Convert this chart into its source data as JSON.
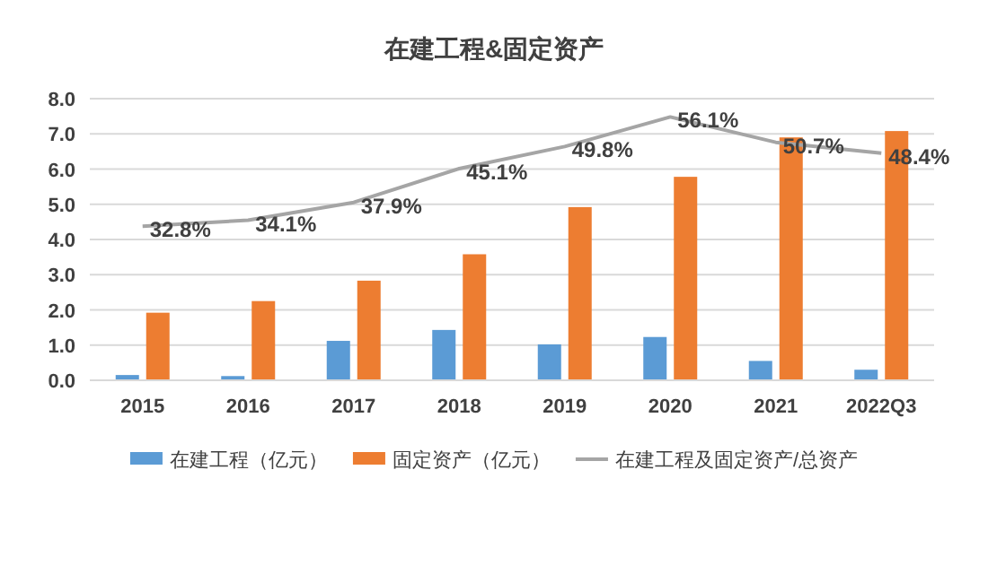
{
  "chart_data": {
    "type": "bar",
    "title": "在建工程&固定资产",
    "categories": [
      "2015",
      "2016",
      "2017",
      "2018",
      "2019",
      "2020",
      "2021",
      "2022Q3"
    ],
    "series": [
      {
        "name": "在建工程（亿元）",
        "color": "#5b9bd5",
        "values": [
          0.15,
          0.12,
          1.12,
          1.43,
          1.02,
          1.23,
          0.55,
          0.3
        ]
      },
      {
        "name": "固定资产（亿元）",
        "color": "#ed7d31",
        "values": [
          1.92,
          2.25,
          2.83,
          3.58,
          4.92,
          5.78,
          6.9,
          7.08
        ]
      },
      {
        "name": "在建工程及固定资产/总资产",
        "type": "line",
        "axis": "y2",
        "color": "#a5a5a5",
        "values": [
          32.8,
          34.1,
          37.9,
          45.1,
          49.8,
          56.1,
          50.7,
          48.4
        ],
        "value_labels": [
          "32.8%",
          "34.1%",
          "37.9%",
          "45.1%",
          "49.8%",
          "56.1%",
          "50.7%",
          "48.4%"
        ]
      }
    ],
    "ylim": [
      0,
      8
    ],
    "yticks": [
      {
        "value": 0,
        "label": "0.0"
      },
      {
        "value": 1,
        "label": "1.0"
      },
      {
        "value": 2,
        "label": "2.0"
      },
      {
        "value": 3,
        "label": "3.0"
      },
      {
        "value": 4,
        "label": "4.0"
      },
      {
        "value": 5,
        "label": "5.0"
      },
      {
        "value": 6,
        "label": "6.0"
      },
      {
        "value": 7,
        "label": "7.0"
      },
      {
        "value": 8,
        "label": "8.0"
      }
    ],
    "y2lim": [
      0,
      60
    ],
    "tick_labels": "xy",
    "grid": "y",
    "legend": "bottom",
    "marker": "none",
    "line_style": "solid"
  }
}
